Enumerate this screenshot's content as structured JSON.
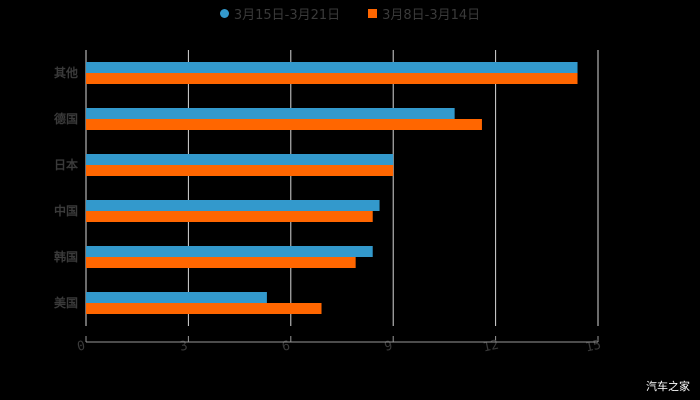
{
  "chart_data": {
    "type": "bar",
    "orientation": "horizontal",
    "title": "",
    "categories": [
      "其他",
      "德国",
      "日本",
      "中国",
      "韩国",
      "美国"
    ],
    "series": [
      {
        "name": "3月15日-3月21日",
        "color": "#3399cc",
        "values": [
          14.4,
          10.8,
          9.0,
          8.6,
          8.4,
          5.3
        ]
      },
      {
        "name": "3月8日-3月14日",
        "color": "#ff6600",
        "values": [
          14.4,
          11.6,
          9.0,
          8.4,
          7.9,
          6.9
        ]
      }
    ],
    "xlabel": "",
    "ylabel": "",
    "xlim": [
      0,
      15
    ],
    "xticks": [
      "0",
      "3",
      "6",
      "9",
      "12",
      "15"
    ],
    "grid": true,
    "legend_position": "top"
  },
  "legend": {
    "series1": "3月15日-3月21日",
    "series2": "3月8日-3月14日"
  },
  "watermark": "汽车之家"
}
